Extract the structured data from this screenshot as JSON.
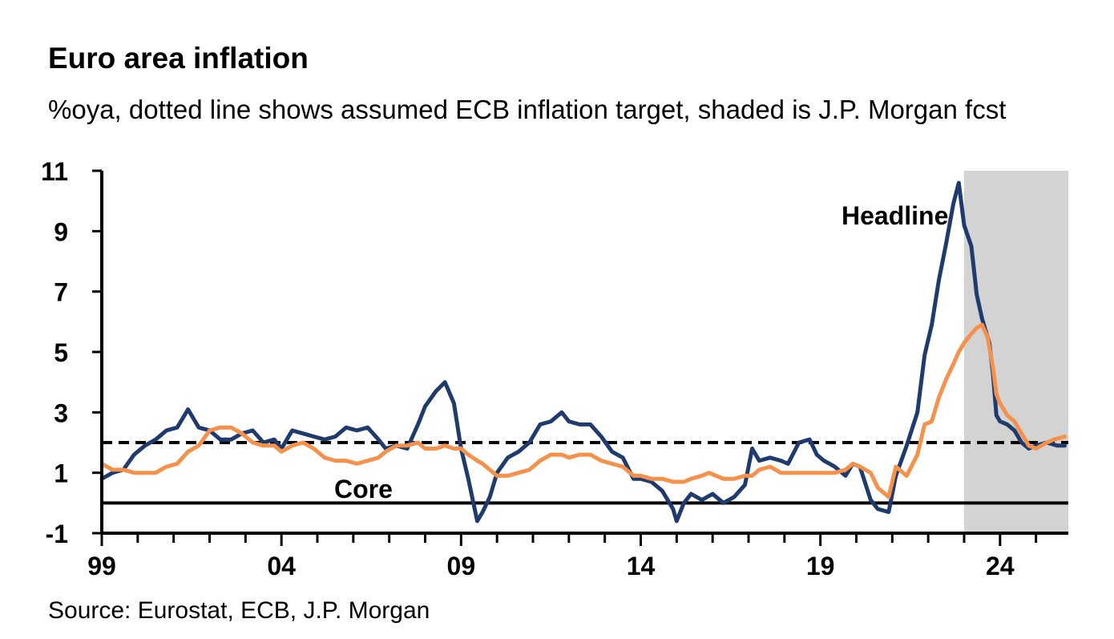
{
  "title": "Euro area inflation",
  "subtitle": "%oya, dotted line shows assumed ECB inflation target, shaded is J.P. Morgan fcst",
  "source": "Source: Eurostat, ECB, J.P. Morgan",
  "chart_data": {
    "type": "line",
    "ylim": [
      -1,
      11
    ],
    "xlim": [
      1999.0,
      2025.9
    ],
    "y_ticks": [
      11,
      9,
      7,
      5,
      3,
      1,
      -1
    ],
    "x_ticks": [
      1999,
      2004,
      2009,
      2014,
      2019,
      2024
    ],
    "x_tick_labels": [
      "99",
      "04",
      "09",
      "14",
      "19",
      "24"
    ],
    "target_line": 2.0,
    "zero_line": 0,
    "forecast_shade": [
      2023.0,
      2025.9
    ],
    "annotations": {
      "headline": "Headline",
      "core": "Core"
    },
    "series": [
      {
        "name": "Headline",
        "color": "#1f3b6e",
        "points": [
          [
            1999.0,
            0.8
          ],
          [
            1999.3,
            1.0
          ],
          [
            1999.6,
            1.1
          ],
          [
            1999.9,
            1.6
          ],
          [
            2000.2,
            1.9
          ],
          [
            2000.5,
            2.1
          ],
          [
            2000.8,
            2.4
          ],
          [
            2001.1,
            2.5
          ],
          [
            2001.4,
            3.1
          ],
          [
            2001.7,
            2.5
          ],
          [
            2002.0,
            2.4
          ],
          [
            2002.3,
            2.1
          ],
          [
            2002.6,
            2.1
          ],
          [
            2002.9,
            2.3
          ],
          [
            2003.2,
            2.4
          ],
          [
            2003.5,
            2.0
          ],
          [
            2003.8,
            2.1
          ],
          [
            2004.0,
            1.8
          ],
          [
            2004.3,
            2.4
          ],
          [
            2004.6,
            2.3
          ],
          [
            2004.9,
            2.2
          ],
          [
            2005.2,
            2.1
          ],
          [
            2005.5,
            2.2
          ],
          [
            2005.8,
            2.5
          ],
          [
            2006.1,
            2.4
          ],
          [
            2006.4,
            2.5
          ],
          [
            2006.7,
            2.1
          ],
          [
            2006.9,
            1.8
          ],
          [
            2007.2,
            1.9
          ],
          [
            2007.5,
            1.8
          ],
          [
            2007.8,
            2.6
          ],
          [
            2008.0,
            3.2
          ],
          [
            2008.3,
            3.7
          ],
          [
            2008.55,
            4.0
          ],
          [
            2008.8,
            3.3
          ],
          [
            2009.0,
            1.8
          ],
          [
            2009.2,
            0.8
          ],
          [
            2009.45,
            -0.6
          ],
          [
            2009.6,
            -0.3
          ],
          [
            2009.8,
            0.2
          ],
          [
            2010.0,
            1.0
          ],
          [
            2010.3,
            1.5
          ],
          [
            2010.6,
            1.7
          ],
          [
            2010.9,
            2.0
          ],
          [
            2011.2,
            2.6
          ],
          [
            2011.5,
            2.7
          ],
          [
            2011.8,
            3.0
          ],
          [
            2012.0,
            2.7
          ],
          [
            2012.3,
            2.6
          ],
          [
            2012.6,
            2.6
          ],
          [
            2012.9,
            2.2
          ],
          [
            2013.2,
            1.7
          ],
          [
            2013.5,
            1.5
          ],
          [
            2013.8,
            0.8
          ],
          [
            2014.0,
            0.8
          ],
          [
            2014.3,
            0.7
          ],
          [
            2014.6,
            0.4
          ],
          [
            2014.9,
            -0.2
          ],
          [
            2015.0,
            -0.6
          ],
          [
            2015.2,
            0.0
          ],
          [
            2015.4,
            0.3
          ],
          [
            2015.7,
            0.1
          ],
          [
            2016.0,
            0.3
          ],
          [
            2016.3,
            0.0
          ],
          [
            2016.6,
            0.2
          ],
          [
            2016.9,
            0.6
          ],
          [
            2017.1,
            1.8
          ],
          [
            2017.3,
            1.4
          ],
          [
            2017.6,
            1.5
          ],
          [
            2017.9,
            1.4
          ],
          [
            2018.1,
            1.3
          ],
          [
            2018.4,
            2.0
          ],
          [
            2018.7,
            2.1
          ],
          [
            2018.9,
            1.6
          ],
          [
            2019.1,
            1.4
          ],
          [
            2019.4,
            1.2
          ],
          [
            2019.7,
            0.9
          ],
          [
            2019.9,
            1.3
          ],
          [
            2020.1,
            1.2
          ],
          [
            2020.4,
            0.1
          ],
          [
            2020.6,
            -0.2
          ],
          [
            2020.9,
            -0.3
          ],
          [
            2021.1,
            0.9
          ],
          [
            2021.4,
            1.9
          ],
          [
            2021.7,
            3.0
          ],
          [
            2021.9,
            4.9
          ],
          [
            2022.1,
            5.9
          ],
          [
            2022.3,
            7.4
          ],
          [
            2022.5,
            8.6
          ],
          [
            2022.7,
            9.9
          ],
          [
            2022.85,
            10.6
          ],
          [
            2023.0,
            9.2
          ],
          [
            2023.2,
            8.5
          ],
          [
            2023.35,
            6.9
          ],
          [
            2023.5,
            6.1
          ],
          [
            2023.7,
            5.3
          ],
          [
            2023.8,
            4.3
          ],
          [
            2023.9,
            2.9
          ],
          [
            2024.0,
            2.7
          ],
          [
            2024.2,
            2.6
          ],
          [
            2024.4,
            2.4
          ],
          [
            2024.6,
            2.0
          ],
          [
            2024.8,
            1.8
          ],
          [
            2025.0,
            1.9
          ],
          [
            2025.3,
            2.0
          ],
          [
            2025.6,
            1.9
          ],
          [
            2025.8,
            1.9
          ]
        ]
      },
      {
        "name": "Core",
        "color": "#f5914b",
        "points": [
          [
            1999.0,
            1.3
          ],
          [
            1999.3,
            1.1
          ],
          [
            1999.6,
            1.1
          ],
          [
            1999.9,
            1.0
          ],
          [
            2000.2,
            1.0
          ],
          [
            2000.5,
            1.0
          ],
          [
            2000.8,
            1.2
          ],
          [
            2001.1,
            1.3
          ],
          [
            2001.4,
            1.7
          ],
          [
            2001.7,
            1.9
          ],
          [
            2002.0,
            2.4
          ],
          [
            2002.3,
            2.5
          ],
          [
            2002.6,
            2.5
          ],
          [
            2002.9,
            2.3
          ],
          [
            2003.2,
            2.0
          ],
          [
            2003.5,
            1.9
          ],
          [
            2003.8,
            1.9
          ],
          [
            2004.0,
            1.7
          ],
          [
            2004.3,
            1.9
          ],
          [
            2004.6,
            2.0
          ],
          [
            2004.9,
            1.8
          ],
          [
            2005.2,
            1.5
          ],
          [
            2005.5,
            1.4
          ],
          [
            2005.8,
            1.4
          ],
          [
            2006.1,
            1.3
          ],
          [
            2006.4,
            1.4
          ],
          [
            2006.7,
            1.5
          ],
          [
            2006.9,
            1.7
          ],
          [
            2007.2,
            1.9
          ],
          [
            2007.5,
            1.9
          ],
          [
            2007.8,
            2.0
          ],
          [
            2008.0,
            1.8
          ],
          [
            2008.3,
            1.8
          ],
          [
            2008.55,
            1.9
          ],
          [
            2008.8,
            1.8
          ],
          [
            2009.0,
            1.8
          ],
          [
            2009.2,
            1.6
          ],
          [
            2009.45,
            1.4
          ],
          [
            2009.6,
            1.3
          ],
          [
            2009.8,
            1.1
          ],
          [
            2010.0,
            0.9
          ],
          [
            2010.3,
            0.9
          ],
          [
            2010.6,
            1.0
          ],
          [
            2010.9,
            1.1
          ],
          [
            2011.2,
            1.4
          ],
          [
            2011.5,
            1.6
          ],
          [
            2011.8,
            1.6
          ],
          [
            2012.0,
            1.5
          ],
          [
            2012.3,
            1.6
          ],
          [
            2012.6,
            1.6
          ],
          [
            2012.9,
            1.4
          ],
          [
            2013.2,
            1.3
          ],
          [
            2013.5,
            1.2
          ],
          [
            2013.8,
            0.9
          ],
          [
            2014.0,
            0.9
          ],
          [
            2014.3,
            0.8
          ],
          [
            2014.6,
            0.8
          ],
          [
            2014.9,
            0.7
          ],
          [
            2015.0,
            0.7
          ],
          [
            2015.2,
            0.7
          ],
          [
            2015.4,
            0.8
          ],
          [
            2015.7,
            0.9
          ],
          [
            2015.9,
            1.0
          ],
          [
            2016.1,
            0.9
          ],
          [
            2016.3,
            0.8
          ],
          [
            2016.6,
            0.8
          ],
          [
            2016.9,
            0.9
          ],
          [
            2017.1,
            0.9
          ],
          [
            2017.3,
            1.1
          ],
          [
            2017.6,
            1.2
          ],
          [
            2017.9,
            1.0
          ],
          [
            2018.1,
            1.0
          ],
          [
            2018.4,
            1.0
          ],
          [
            2018.7,
            1.0
          ],
          [
            2018.9,
            1.0
          ],
          [
            2019.1,
            1.0
          ],
          [
            2019.4,
            1.0
          ],
          [
            2019.7,
            1.1
          ],
          [
            2019.9,
            1.3
          ],
          [
            2020.1,
            1.2
          ],
          [
            2020.4,
            1.0
          ],
          [
            2020.6,
            0.5
          ],
          [
            2020.9,
            0.2
          ],
          [
            2021.1,
            1.2
          ],
          [
            2021.4,
            0.9
          ],
          [
            2021.7,
            1.6
          ],
          [
            2021.9,
            2.6
          ],
          [
            2022.1,
            2.7
          ],
          [
            2022.3,
            3.5
          ],
          [
            2022.5,
            4.1
          ],
          [
            2022.7,
            4.6
          ],
          [
            2022.85,
            5.0
          ],
          [
            2023.0,
            5.3
          ],
          [
            2023.2,
            5.6
          ],
          [
            2023.35,
            5.8
          ],
          [
            2023.5,
            5.9
          ],
          [
            2023.65,
            5.5
          ],
          [
            2023.8,
            4.5
          ],
          [
            2023.9,
            3.6
          ],
          [
            2024.0,
            3.3
          ],
          [
            2024.2,
            2.9
          ],
          [
            2024.4,
            2.7
          ],
          [
            2024.6,
            2.3
          ],
          [
            2024.8,
            1.9
          ],
          [
            2025.0,
            1.8
          ],
          [
            2025.3,
            2.0
          ],
          [
            2025.5,
            2.1
          ],
          [
            2025.8,
            2.2
          ]
        ]
      }
    ]
  }
}
